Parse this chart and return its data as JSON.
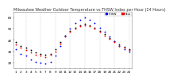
{
  "title": "Milwaukee Weather Outdoor Temperature vs THSW Index per Hour (24 Hours)",
  "background_color": "#ffffff",
  "grid_color": "#aaaaaa",
  "hours": [
    1,
    2,
    3,
    4,
    5,
    6,
    7,
    8,
    9,
    10,
    11,
    12,
    13,
    14,
    15,
    16,
    17,
    18,
    19,
    20,
    21,
    22,
    23,
    24
  ],
  "temp_outdoor": [
    38,
    35,
    33,
    31,
    29,
    28,
    27,
    28,
    32,
    38,
    44,
    48,
    51,
    53,
    54,
    53,
    51,
    48,
    45,
    42,
    39,
    36,
    34,
    32
  ],
  "thsw_index": [
    32,
    28,
    26,
    23,
    21,
    20,
    19,
    21,
    26,
    35,
    44,
    50,
    55,
    58,
    60,
    58,
    55,
    51,
    47,
    43,
    39,
    35,
    32,
    30
  ],
  "heat_index": [
    36,
    33,
    31,
    29,
    27,
    26,
    25,
    27,
    30,
    37,
    43,
    47,
    50,
    52,
    53,
    52,
    50,
    47,
    44,
    41,
    38,
    35,
    33,
    31
  ],
  "temp_color": "#000000",
  "thsw_color": "#0000ff",
  "heat_color": "#ff0000",
  "legend_blue_label": "THSW",
  "legend_red_label": "Heat",
  "ylim": [
    15,
    65
  ],
  "ytick_values": [
    20,
    30,
    40,
    50,
    60
  ],
  "vgrid_hours": [
    3,
    6,
    9,
    12,
    15,
    18,
    21,
    24
  ],
  "marker_size": 1.8,
  "title_fontsize": 3.5,
  "tick_fontsize": 3.0
}
